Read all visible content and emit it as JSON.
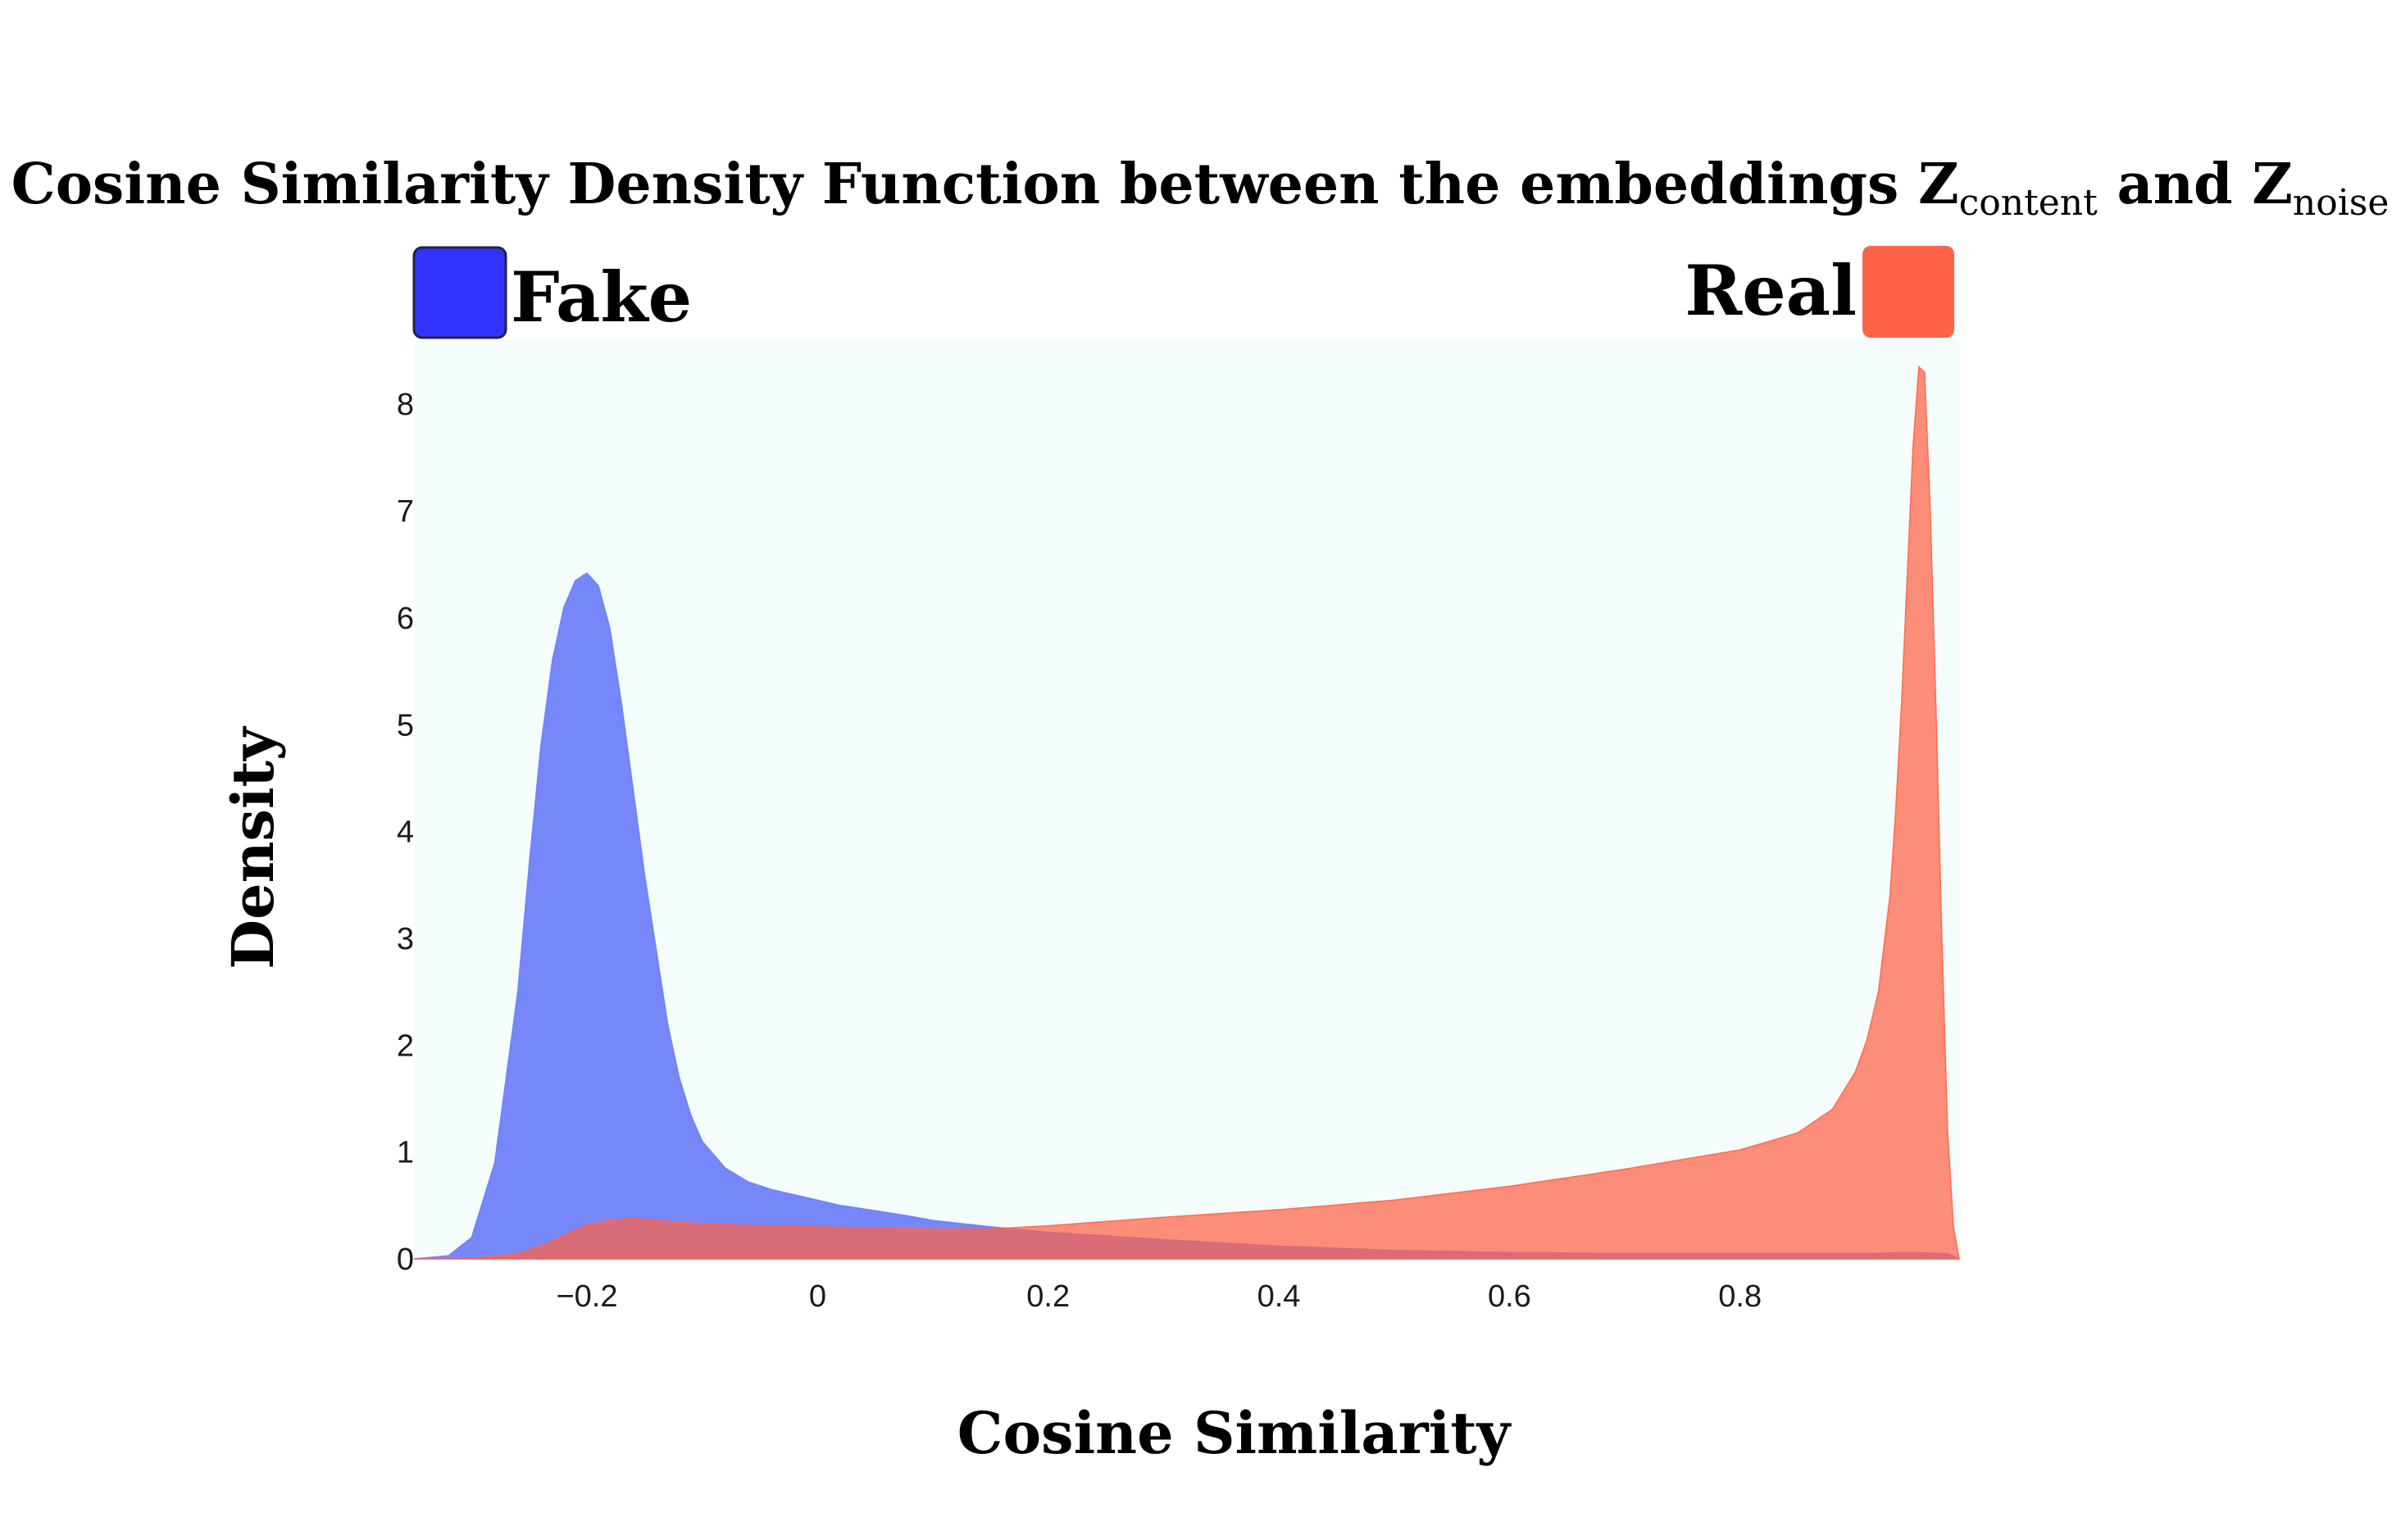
{
  "chart_data": {
    "type": "area",
    "title": "Cosine Similarity Density Function between the embeddings",
    "title_math": {
      "symbol": "Z",
      "sub_a": "content",
      "join": "and",
      "sub_b": "noise"
    },
    "xlabel": "Cosine Similarity",
    "ylabel": "Density",
    "xlim": [
      -0.35,
      0.99
    ],
    "ylim": [
      0,
      8.6
    ],
    "xticks": [
      {
        "value": -0.2,
        "label": "−0.2"
      },
      {
        "value": 0,
        "label": "0"
      },
      {
        "value": 0.2,
        "label": "0.2"
      },
      {
        "value": 0.4,
        "label": "0.4"
      },
      {
        "value": 0.6,
        "label": "0.6"
      },
      {
        "value": 0.8,
        "label": "0.8"
      }
    ],
    "yticks": [
      0,
      1,
      2,
      3,
      4,
      5,
      6,
      7,
      8
    ],
    "grid": false,
    "plot_background": "#f4fcfc",
    "legend": {
      "placement": "top"
    },
    "series": [
      {
        "name": "Fake",
        "color": "#3333ff",
        "fill_color": "#6a7dfa",
        "x": [
          -0.35,
          -0.32,
          -0.3,
          -0.28,
          -0.26,
          -0.25,
          -0.24,
          -0.23,
          -0.22,
          -0.21,
          -0.2,
          -0.19,
          -0.18,
          -0.17,
          -0.16,
          -0.15,
          -0.14,
          -0.13,
          -0.12,
          -0.11,
          -0.1,
          -0.08,
          -0.06,
          -0.04,
          -0.02,
          0.0,
          0.02,
          0.05,
          0.08,
          0.1,
          0.15,
          0.2,
          0.3,
          0.4,
          0.5,
          0.6,
          0.7,
          0.8,
          0.9,
          0.95,
          0.98,
          0.99
        ],
        "values": [
          0.0,
          0.03,
          0.2,
          0.9,
          2.5,
          3.7,
          4.8,
          5.6,
          6.1,
          6.35,
          6.42,
          6.3,
          5.9,
          5.2,
          4.4,
          3.6,
          2.9,
          2.2,
          1.7,
          1.35,
          1.1,
          0.85,
          0.72,
          0.65,
          0.6,
          0.55,
          0.5,
          0.45,
          0.4,
          0.36,
          0.3,
          0.25,
          0.18,
          0.12,
          0.08,
          0.06,
          0.05,
          0.05,
          0.05,
          0.06,
          0.05,
          0.0
        ]
      },
      {
        "name": "Real",
        "color": "#ff6347",
        "fill_color": "#ff6347",
        "x": [
          -0.35,
          -0.3,
          -0.26,
          -0.24,
          -0.22,
          -0.2,
          -0.18,
          -0.16,
          -0.14,
          -0.1,
          -0.05,
          0.0,
          0.05,
          0.1,
          0.15,
          0.2,
          0.3,
          0.4,
          0.5,
          0.6,
          0.7,
          0.8,
          0.85,
          0.88,
          0.9,
          0.91,
          0.92,
          0.93,
          0.935,
          0.94,
          0.945,
          0.95,
          0.955,
          0.96,
          0.965,
          0.97,
          0.975,
          0.98,
          0.985,
          0.99
        ],
        "values": [
          0.0,
          0.0,
          0.05,
          0.12,
          0.22,
          0.32,
          0.36,
          0.38,
          0.36,
          0.33,
          0.31,
          0.3,
          0.29,
          0.28,
          0.28,
          0.31,
          0.39,
          0.46,
          0.55,
          0.68,
          0.84,
          1.02,
          1.18,
          1.4,
          1.75,
          2.05,
          2.5,
          3.4,
          4.2,
          5.2,
          6.4,
          7.6,
          8.35,
          8.3,
          7.0,
          5.1,
          3.0,
          1.2,
          0.3,
          0.0
        ]
      }
    ]
  }
}
